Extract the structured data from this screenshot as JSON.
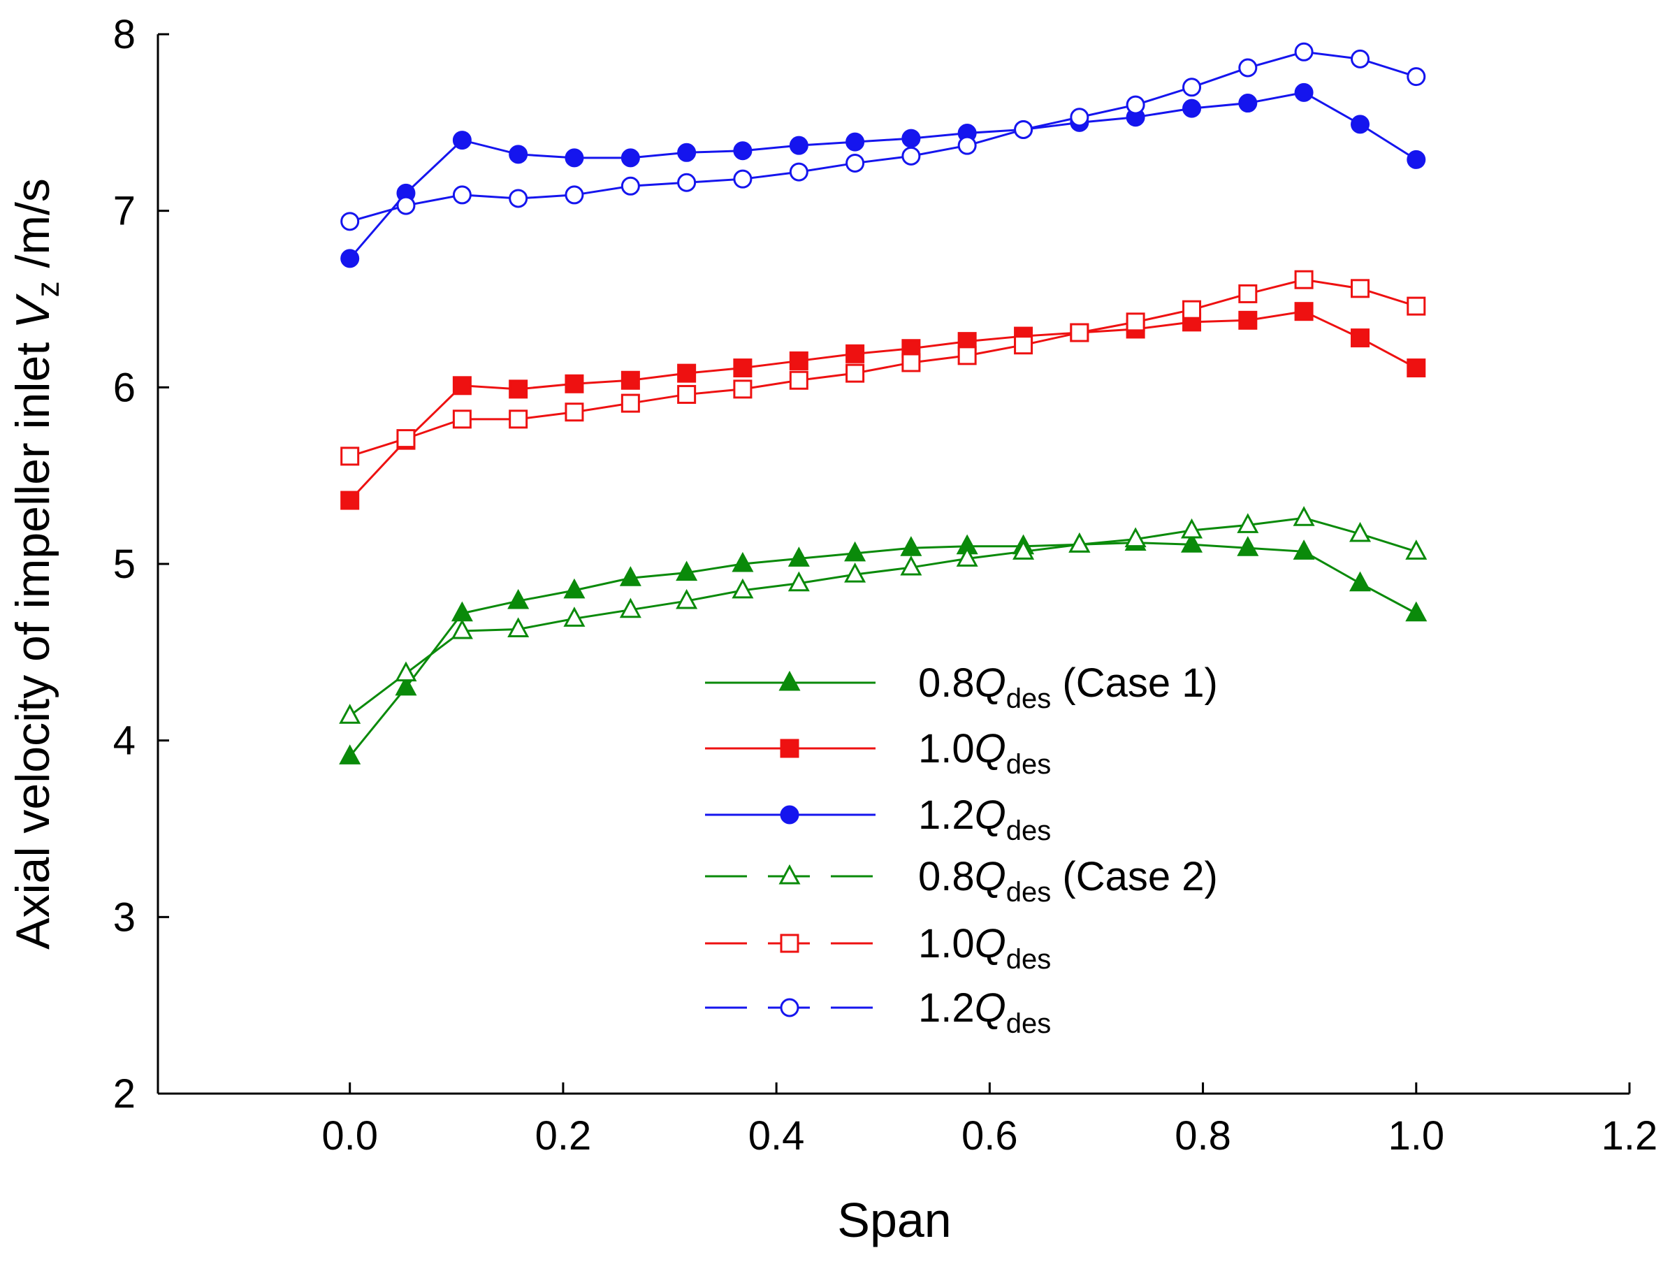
{
  "chart_data": {
    "type": "line",
    "title": "",
    "xlabel": "Span",
    "ylabel": "Axial velocity of impeller inlet ",
    "ylabel_var": "V",
    "ylabel_sub": "z",
    "ylabel_unit": " /m/s",
    "xlim": [
      -0.18,
      1.2
    ],
    "ylim": [
      2,
      8
    ],
    "xticks": [
      "0.0",
      "0.2",
      "0.4",
      "0.6",
      "0.8",
      "1.0",
      "1.2"
    ],
    "xtick_values": [
      0,
      0.2,
      0.4,
      0.6,
      0.8,
      1.0,
      1.2
    ],
    "yticks": [
      "2",
      "3",
      "4",
      "5",
      "6",
      "7",
      "8"
    ],
    "ytick_values": [
      2,
      3,
      4,
      5,
      6,
      7,
      8
    ],
    "grid": false,
    "legend_placement": "bottom-center",
    "x": [
      0,
      0.0526,
      0.1053,
      0.1579,
      0.2105,
      0.2632,
      0.3158,
      0.3684,
      0.4211,
      0.4737,
      0.5263,
      0.5789,
      0.6316,
      0.6842,
      0.7368,
      0.7895,
      0.8421,
      0.8947,
      0.9474,
      1.0
    ],
    "series": [
      {
        "name": "0.8Qdes (Case 1)",
        "label": {
          "num": "0.8",
          "q": "Q",
          "sub": "des",
          "suffix": " (Case 1)"
        },
        "color": "#0a8a0a",
        "marker": "triangle",
        "filled": true,
        "dashed": false,
        "values": [
          3.91,
          4.3,
          4.72,
          4.79,
          4.85,
          4.92,
          4.95,
          5.0,
          5.03,
          5.06,
          5.09,
          5.1,
          5.1,
          5.11,
          5.12,
          5.11,
          5.09,
          5.07,
          4.89,
          4.72
        ]
      },
      {
        "name": "1.0Qdes",
        "label": {
          "num": "1.0",
          "q": "Q",
          "sub": "des",
          "suffix": ""
        },
        "color": "#ee1111",
        "marker": "square",
        "filled": true,
        "dashed": false,
        "values": [
          5.36,
          5.7,
          6.01,
          5.99,
          6.02,
          6.04,
          6.08,
          6.11,
          6.15,
          6.19,
          6.22,
          6.26,
          6.29,
          6.31,
          6.33,
          6.37,
          6.38,
          6.43,
          6.28,
          6.11
        ]
      },
      {
        "name": "1.2Qdes",
        "label": {
          "num": "1.2",
          "q": "Q",
          "sub": "des",
          "suffix": ""
        },
        "color": "#1515ee",
        "marker": "circle",
        "filled": true,
        "dashed": false,
        "values": [
          6.73,
          7.1,
          7.4,
          7.32,
          7.3,
          7.3,
          7.33,
          7.34,
          7.37,
          7.39,
          7.41,
          7.44,
          7.46,
          7.5,
          7.53,
          7.58,
          7.61,
          7.67,
          7.49,
          7.29
        ]
      },
      {
        "name": "0.8Qdes (Case 2)",
        "label": {
          "num": "0.8",
          "q": "Q",
          "sub": "des",
          "suffix": " (Case 2)"
        },
        "color": "#0a8a0a",
        "marker": "triangle",
        "filled": false,
        "dashed": true,
        "values": [
          4.14,
          4.38,
          4.62,
          4.63,
          4.69,
          4.74,
          4.79,
          4.85,
          4.89,
          4.94,
          4.98,
          5.03,
          5.07,
          5.11,
          5.14,
          5.19,
          5.22,
          5.26,
          5.17,
          5.07
        ]
      },
      {
        "name": "1.0Qdes",
        "label": {
          "num": "1.0",
          "q": "Q",
          "sub": "des",
          "suffix": ""
        },
        "color": "#ee1111",
        "marker": "square",
        "filled": false,
        "dashed": true,
        "values": [
          5.61,
          5.71,
          5.82,
          5.82,
          5.86,
          5.91,
          5.96,
          5.99,
          6.04,
          6.08,
          6.14,
          6.18,
          6.24,
          6.31,
          6.37,
          6.44,
          6.53,
          6.61,
          6.56,
          6.46
        ]
      },
      {
        "name": "1.2Qdes",
        "label": {
          "num": "1.2",
          "q": "Q",
          "sub": "des",
          "suffix": ""
        },
        "color": "#1515ee",
        "marker": "circle",
        "filled": false,
        "dashed": true,
        "values": [
          6.94,
          7.03,
          7.09,
          7.07,
          7.09,
          7.14,
          7.16,
          7.18,
          7.22,
          7.27,
          7.31,
          7.37,
          7.46,
          7.53,
          7.6,
          7.7,
          7.81,
          7.9,
          7.86,
          7.76
        ]
      }
    ]
  }
}
